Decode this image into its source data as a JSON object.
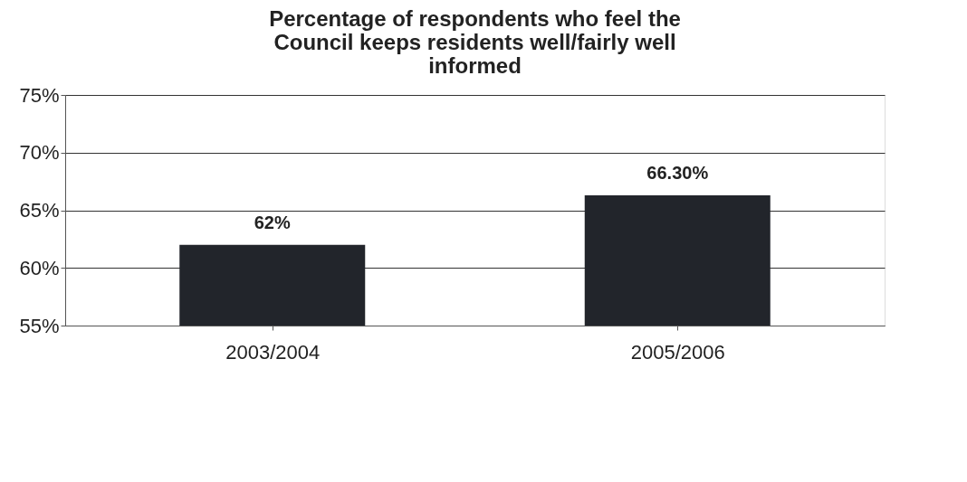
{
  "chart_data": {
    "type": "bar",
    "title": [
      "Percentage of respondents who feel the",
      "Council keeps residents well/fairly well",
      "informed"
    ],
    "categories": [
      "2003/2004",
      "2005/2006"
    ],
    "values": [
      62,
      66.3
    ],
    "value_labels": [
      "62%",
      "66.30%"
    ],
    "color": "#22252b",
    "ylim": [
      55,
      75
    ],
    "yticks": [
      {
        "value": 55,
        "label": "55%"
      },
      {
        "value": 60,
        "label": "60%"
      },
      {
        "value": 65,
        "label": "65%"
      },
      {
        "value": 70,
        "label": "70%"
      },
      {
        "value": 75,
        "label": "75%"
      }
    ],
    "grid": "y"
  }
}
